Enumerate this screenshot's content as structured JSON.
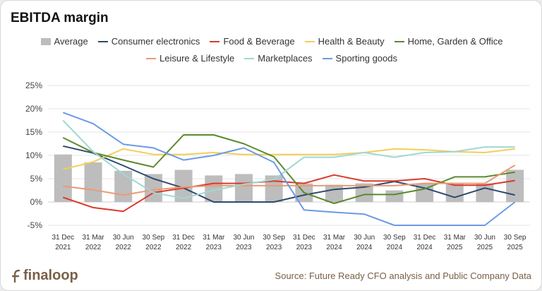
{
  "title": "EBITDA margin",
  "source": "Source: Future Ready CFO analysis and Public Company Data",
  "logo": "finaloop",
  "chart_data": {
    "type": "bar+line",
    "title": "EBITDA margin",
    "categories": [
      [
        "31 Dec",
        "2021"
      ],
      [
        "31 Mar",
        "2022"
      ],
      [
        "30 Jun",
        "2022"
      ],
      [
        "30 Sep",
        "2022"
      ],
      [
        "31 Dec",
        "2022"
      ],
      [
        "31 Mar",
        "2023"
      ],
      [
        "30 Jun",
        "2023"
      ],
      [
        "30 Sep",
        "2023"
      ],
      [
        "31 Dec",
        "2023"
      ],
      [
        "31 Mar",
        "2024"
      ],
      [
        "30 Jun",
        "2024"
      ],
      [
        "30 Sep",
        "2024"
      ],
      [
        "31 Dec",
        "2024"
      ],
      [
        "31 Mar",
        "2025"
      ],
      [
        "30 Jun",
        "2025"
      ],
      [
        "30 Sep",
        "2025"
      ]
    ],
    "ylim": [
      -5,
      25
    ],
    "yticks": [
      -5,
      0,
      5,
      10,
      15,
      20,
      25
    ],
    "ytick_labels": [
      "-5%",
      "0%",
      "5%",
      "10%",
      "15%",
      "20%",
      "25%"
    ],
    "bars": {
      "name": "Average",
      "color": "#bdbdbd",
      "values": [
        10.2,
        8.5,
        6.7,
        6.0,
        6.9,
        5.7,
        6.0,
        5.7,
        4.0,
        3.7,
        4.0,
        2.5,
        4.0,
        4.0,
        4.0,
        6.9
      ]
    },
    "series": [
      {
        "name": "Consumer electronics",
        "color": "#2e4a6e",
        "values": [
          12.0,
          10.5,
          7.8,
          5.0,
          3.0,
          0.0,
          0.0,
          0.0,
          1.5,
          2.7,
          3.2,
          4.4,
          3.0,
          1.0,
          3.0,
          1.5
        ]
      },
      {
        "name": "Food & Beverage",
        "color": "#d93a2b",
        "values": [
          1.0,
          -1.2,
          -2.0,
          2.0,
          3.0,
          4.0,
          4.0,
          4.5,
          4.0,
          5.8,
          4.5,
          4.5,
          5.0,
          3.6,
          3.6,
          4.6
        ]
      },
      {
        "name": "Health & Beauty",
        "color": "#f3cf55",
        "values": [
          7.0,
          8.6,
          11.4,
          10.2,
          10.2,
          10.6,
          10.2,
          10.2,
          10.2,
          10.2,
          10.6,
          11.4,
          11.2,
          10.8,
          10.6,
          11.4
        ]
      },
      {
        "name": "Home, Garden & Office",
        "color": "#5c8a2e",
        "values": [
          13.8,
          10.6,
          9.0,
          7.5,
          14.4,
          14.4,
          12.5,
          9.7,
          2.0,
          -0.3,
          1.6,
          1.6,
          2.8,
          5.4,
          5.4,
          6.4
        ]
      },
      {
        "name": "Leisure & Lifestyle",
        "color": "#ea9a76",
        "values": [
          3.4,
          2.6,
          1.5,
          2.6,
          3.2,
          3.5,
          3.5,
          3.5,
          3.5,
          3.5,
          3.5,
          3.5,
          4.0,
          4.0,
          4.0,
          7.9
        ]
      },
      {
        "name": "Marketplaces",
        "color": "#9fd8d4",
        "values": [
          17.5,
          10.8,
          6.0,
          2.0,
          0.8,
          2.5,
          3.8,
          4.8,
          9.6,
          9.6,
          10.6,
          9.6,
          10.6,
          10.8,
          11.8,
          11.8
        ]
      },
      {
        "name": "Sporting goods",
        "color": "#6b9ae6",
        "values": [
          19.2,
          16.8,
          12.4,
          11.6,
          9.0,
          10.0,
          11.6,
          8.5,
          -1.7,
          -2.2,
          -2.6,
          -5.0,
          -5.0,
          -5.0,
          -5.0,
          0.0
        ]
      }
    ]
  }
}
